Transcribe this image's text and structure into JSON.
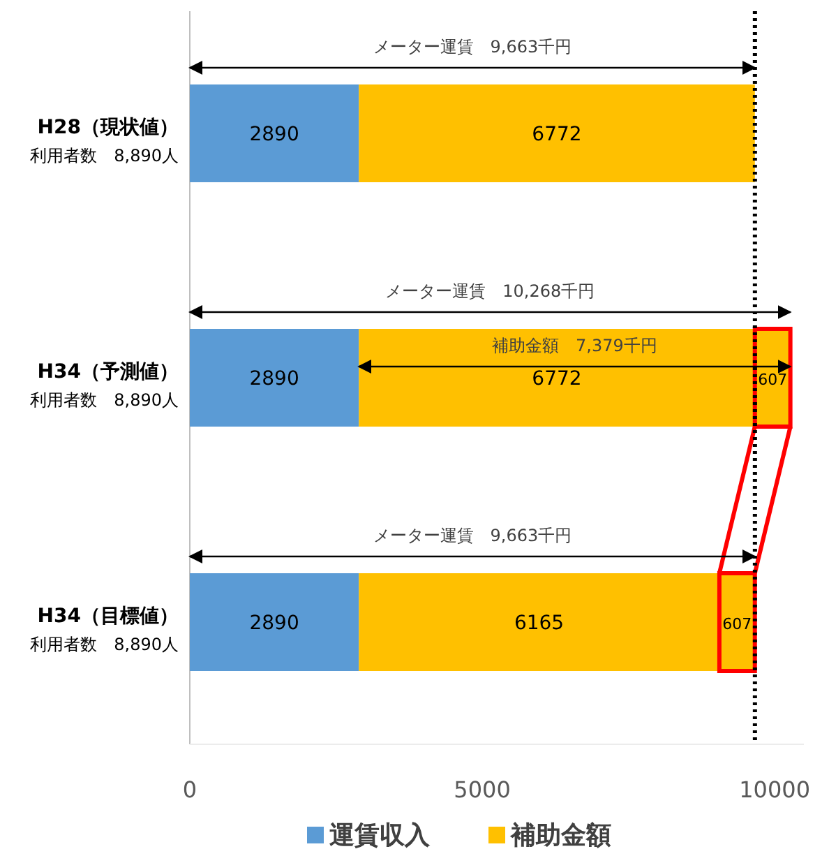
{
  "chart_data": {
    "type": "bar",
    "orientation": "horizontal",
    "stacked": true,
    "data_labels": true,
    "categories": [
      "H28（現状値）利用者数　8,890人",
      "H34（予測値）利用者数　8,890人",
      "H34（目標値）利用者数　8,890人"
    ],
    "series": [
      {
        "name": "運賃収入",
        "color": "#5b9bd5",
        "values": [
          2890,
          2890,
          2890
        ]
      },
      {
        "name": "補助金額",
        "color": "#ffc000",
        "values": [
          6772,
          6772,
          6165
        ]
      },
      {
        "color": "#ffc000",
        "values": [
          null,
          607,
          607
        ]
      }
    ],
    "xlim": [
      0,
      10500
    ],
    "xticks": [
      0,
      5000,
      10000
    ],
    "legend": "bottom",
    "grid": false,
    "ref_lines": [
      {
        "axis": "x",
        "value": 9663,
        "line_style": "dotted",
        "color": "#000000"
      }
    ],
    "annotations": [
      "メーター運賃　9,663千円",
      "メーター運賃　10,268千円",
      "補助金額　7,379千円",
      "メーター運賃　9,663千円"
    ]
  }
}
